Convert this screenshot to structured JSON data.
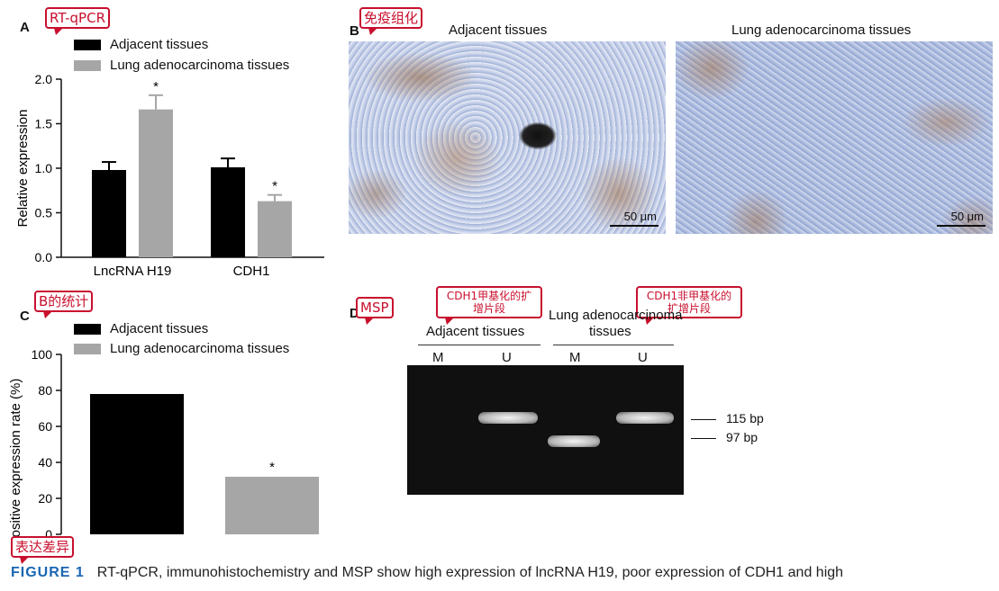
{
  "panel_a": {
    "letter": "A",
    "callout": "RT-qPCR",
    "legend": [
      "Adjacent tissues",
      "Lung adenocarcinoma tissues"
    ],
    "chart_data": {
      "type": "bar",
      "categories": [
        "LncRNA H19",
        "CDH1"
      ],
      "series": [
        {
          "name": "Adjacent tissues",
          "values": [
            0.98,
            1.01
          ],
          "errors": [
            0.09,
            0.1
          ],
          "color": "#000000",
          "marks": [
            "",
            ""
          ]
        },
        {
          "name": "Lung adenocarcinoma tissues",
          "values": [
            1.66,
            0.63
          ],
          "errors": [
            0.16,
            0.07
          ],
          "color": "#a6a6a6",
          "marks": [
            "*",
            "*"
          ]
        }
      ],
      "ylabel": "Relative expression",
      "ylim": [
        0,
        2.0
      ],
      "yticks": [
        "0.0",
        "0.5",
        "1.0",
        "1.5",
        "2.0"
      ]
    }
  },
  "panel_b": {
    "letter": "B",
    "callout": "免疫组化",
    "left_title": "Adjacent tissues",
    "right_title": "Lung adenocarcinoma tissues",
    "scale_text": "50 μm"
  },
  "panel_c": {
    "letter": "C",
    "callout": "B的统计",
    "callout_bottom": "表达差异",
    "legend": [
      "Adjacent tissues",
      "Lung adenocarcinoma tissues"
    ],
    "chart_data": {
      "type": "bar",
      "categories": [
        "Adjacent tissues",
        "Lung adenocarcinoma tissues"
      ],
      "series": [
        {
          "name": "Positive expression rate (%)",
          "values": [
            78,
            32
          ],
          "colors": [
            "#000000",
            "#a6a6a6"
          ],
          "marks": [
            "",
            "*"
          ]
        }
      ],
      "ylabel": "Positive expression rate (%)",
      "ylim": [
        0,
        100
      ],
      "yticks": [
        "0",
        "20",
        "40",
        "60",
        "80",
        "100"
      ]
    }
  },
  "panel_d": {
    "letter": "D",
    "callout": "MSP",
    "callout_m": "CDH1甲基化的扩增片段",
    "callout_u": "CDH1非甲基化的扩增片段",
    "group_left": "Adjacent tissues",
    "group_right_line1": "Lung adenocarcinoma",
    "group_right_line2": "tissues",
    "lanes": [
      "M",
      "U",
      "M",
      "U"
    ],
    "marker_115": "115 bp",
    "marker_97": "97 bp"
  },
  "caption": {
    "figure_label": "FIGURE 1",
    "text": "RT-qPCR, immunohistochemistry and MSP show high expression of lncRNA H19, poor expression of CDH1 and high"
  }
}
